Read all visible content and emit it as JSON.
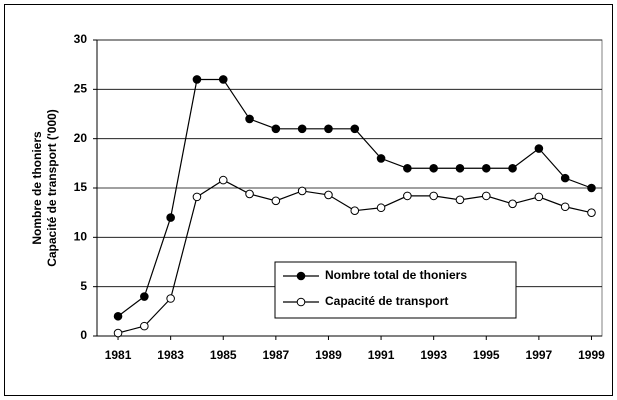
{
  "chart_data": {
    "type": "line",
    "ylabel": [
      "Nombre de thoniers",
      "Capacité de transport ('000)"
    ],
    "x": [
      1981,
      1982,
      1983,
      1984,
      1985,
      1986,
      1987,
      1988,
      1989,
      1990,
      1991,
      1992,
      1993,
      1994,
      1995,
      1996,
      1997,
      1998,
      1999
    ],
    "series": [
      {
        "name": "Nombre total de thoniers",
        "color": "#000000",
        "marker": "filled",
        "values": [
          2,
          4,
          12,
          26,
          26,
          22,
          21,
          21,
          21,
          21,
          18,
          17,
          17,
          17,
          17,
          17,
          19,
          16,
          15
        ]
      },
      {
        "name": "Capacité de transport",
        "color": "#000000",
        "marker": "open",
        "values": [
          0.3,
          1,
          3.8,
          14.1,
          15.8,
          14.4,
          13.7,
          14.7,
          14.3,
          12.7,
          13,
          14.2,
          14.2,
          13.8,
          14.2,
          13.4,
          14.1,
          13.1,
          12.5
        ]
      }
    ],
    "xlim": [
      1980.2,
      1999.4
    ],
    "xticks": [
      1981,
      1983,
      1985,
      1987,
      1989,
      1991,
      1993,
      1995,
      1997,
      1999
    ],
    "ylim": [
      0,
      30
    ],
    "yticks": [
      0,
      5,
      10,
      15,
      20,
      25,
      30
    ],
    "grid": true,
    "legend": "lower right"
  }
}
